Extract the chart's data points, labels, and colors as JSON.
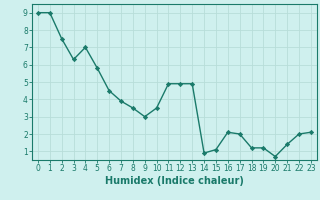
{
  "x": [
    0,
    1,
    2,
    3,
    4,
    5,
    6,
    7,
    8,
    9,
    10,
    11,
    12,
    13,
    14,
    15,
    16,
    17,
    18,
    19,
    20,
    21,
    22,
    23
  ],
  "y": [
    9.0,
    9.0,
    7.5,
    6.3,
    7.0,
    5.8,
    4.5,
    3.9,
    3.5,
    3.0,
    3.5,
    4.9,
    4.9,
    4.9,
    0.9,
    1.1,
    2.1,
    2.0,
    1.2,
    1.2,
    0.7,
    1.4,
    2.0,
    2.1
  ],
  "line_color": "#1a7a6a",
  "marker": "D",
  "marker_size": 2.2,
  "bg_color": "#cff0ee",
  "grid_color": "#b8ddd9",
  "xlabel": "Humidex (Indice chaleur)",
  "ylim": [
    0.5,
    9.5
  ],
  "xlim": [
    -0.5,
    23.5
  ],
  "yticks": [
    1,
    2,
    3,
    4,
    5,
    6,
    7,
    8,
    9
  ],
  "xticks": [
    0,
    1,
    2,
    3,
    4,
    5,
    6,
    7,
    8,
    9,
    10,
    11,
    12,
    13,
    14,
    15,
    16,
    17,
    18,
    19,
    20,
    21,
    22,
    23
  ],
  "tick_label_fontsize": 5.5,
  "xlabel_fontsize": 7.0,
  "axis_color": "#1a7a6a",
  "line_width": 1.0
}
